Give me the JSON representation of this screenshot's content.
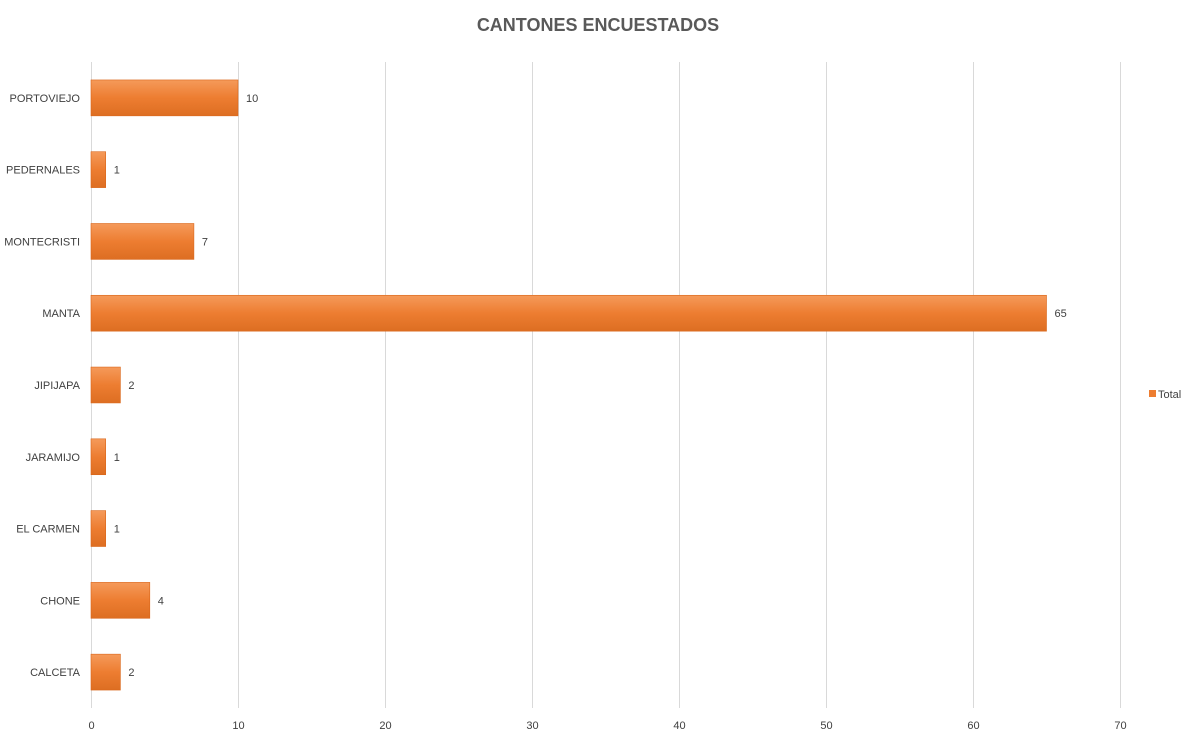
{
  "chart_data": {
    "type": "bar",
    "orientation": "horizontal",
    "title": "CANTONES ENCUESTADOS",
    "categories": [
      "PORTOVIEJO",
      "PEDERNALES",
      "MONTECRISTI",
      "MANTA",
      "JIPIJAPA",
      "JARAMIJO",
      "EL CARMEN",
      "CHONE",
      "CALCETA"
    ],
    "series": [
      {
        "name": "Total",
        "values": [
          10,
          1,
          7,
          65,
          2,
          1,
          1,
          4,
          2
        ],
        "color": "#ED7D31"
      }
    ],
    "xlim": [
      0,
      70
    ],
    "xticks": [
      0,
      10,
      20,
      30,
      40,
      50,
      60,
      70
    ],
    "xlabel": "",
    "ylabel": "",
    "grid": "vertical",
    "legend": "right",
    "data_labels": true
  }
}
